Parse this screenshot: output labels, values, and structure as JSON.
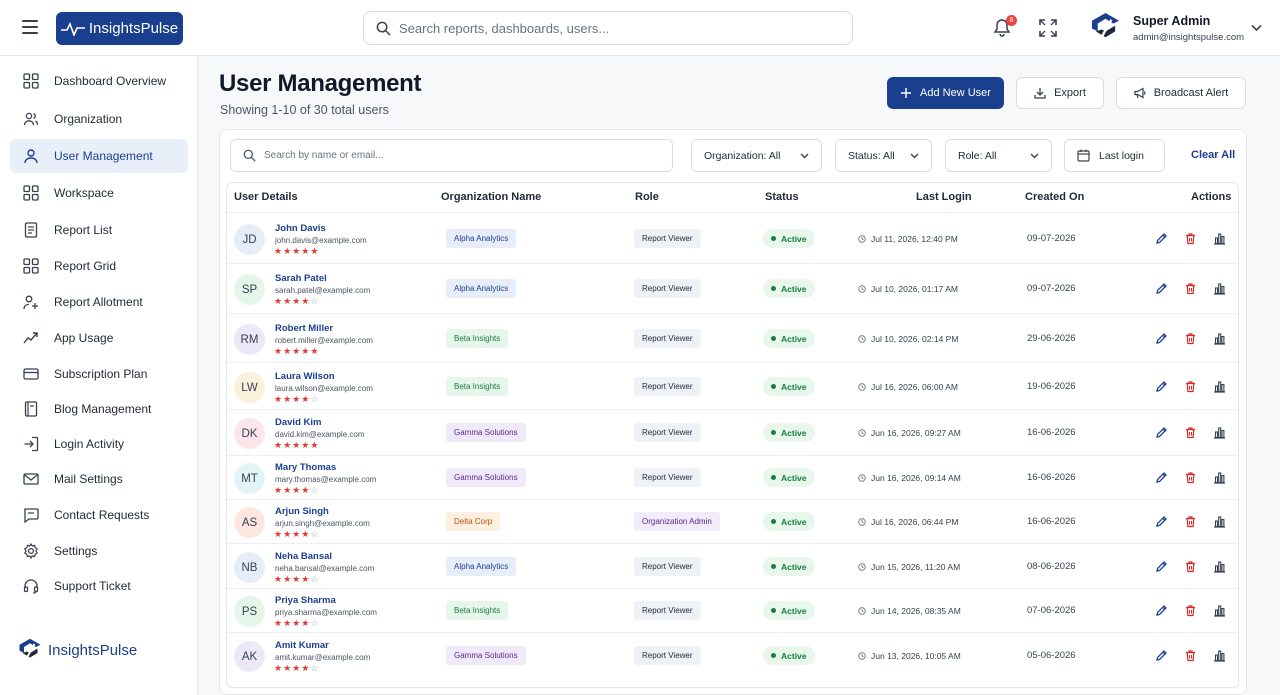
{
  "header": {
    "brand": "InsightsPulse",
    "search_placeholder": "Search reports, dashboards, users...",
    "notification_count": "8",
    "admin_name": "Super Admin",
    "admin_email": "admin@insightspulse.com"
  },
  "sidebar": {
    "items": [
      {
        "label": "Dashboard Overview",
        "icon": "grid-icon"
      },
      {
        "label": "Organization",
        "icon": "users-icon"
      },
      {
        "label": "User Management",
        "icon": "user-icon",
        "active": true
      },
      {
        "label": "Workspace",
        "icon": "grid-icon"
      },
      {
        "label": "Report List",
        "icon": "document-icon"
      },
      {
        "label": "Report Grid",
        "icon": "grid-icon"
      },
      {
        "label": "Report Allotment",
        "icon": "user-assign-icon"
      },
      {
        "label": "App Usage",
        "icon": "trend-icon"
      },
      {
        "label": "Subscription Plan",
        "icon": "card-icon"
      },
      {
        "label": "Blog Management",
        "icon": "book-icon"
      },
      {
        "label": "Login Activity",
        "icon": "login-icon"
      },
      {
        "label": "Mail Settings",
        "icon": "mail-icon"
      },
      {
        "label": "Contact Requests",
        "icon": "message-icon"
      },
      {
        "label": "Settings",
        "icon": "gear-icon"
      },
      {
        "label": "Support Ticket",
        "icon": "headset-icon"
      }
    ],
    "footer_brand": "InsightsPulse"
  },
  "page": {
    "title": "User Management",
    "subtitle": "Showing 1-10 of 30 total users",
    "add_user": "Add New User",
    "export": "Export",
    "broadcast": "Broadcast Alert"
  },
  "filters": {
    "search_placeholder": "Search by name or email...",
    "organization": "Organization: All",
    "status": "Status: All",
    "role": "Role: All",
    "last_login": "Last login",
    "clear": "Clear All"
  },
  "table": {
    "columns": [
      "User Details",
      "Organization Name",
      "Role",
      "Status",
      "Last Login",
      "Created On",
      "Actions"
    ],
    "rows": [
      {
        "initials": "JD",
        "name": "John Davis",
        "email": "john.davis@example.com",
        "rating": 5,
        "org": "Alpha Analytics",
        "role": "Report Viewer",
        "status": "Active",
        "last_login": "Jul 11, 2026, 12:40 PM",
        "created": "09-07-2026"
      },
      {
        "initials": "SP",
        "name": "Sarah Patel",
        "email": "sarah.patel@example.com",
        "rating": 4,
        "org": "Alpha Analytics",
        "role": "Report Viewer",
        "status": "Active",
        "last_login": "Jul 10, 2026, 01:17 AM",
        "created": "09-07-2026"
      },
      {
        "initials": "RM",
        "name": "Robert Miller",
        "email": "robert.miller@example.com",
        "rating": 5,
        "org": "Beta Insights",
        "role": "Report Viewer",
        "status": "Active",
        "last_login": "Jul 10, 2026, 02:14 PM",
        "created": "29-06-2026"
      },
      {
        "initials": "LW",
        "name": "Laura Wilson",
        "email": "laura.wilson@example.com",
        "rating": 4,
        "org": "Beta Insights",
        "role": "Report Viewer",
        "status": "Active",
        "last_login": "Jul 16, 2026, 06:00 AM",
        "created": "19-06-2026"
      },
      {
        "initials": "DK",
        "name": "David Kim",
        "email": "david.kim@example.com",
        "rating": 5,
        "org": "Gamma Solutions",
        "role": "Report Viewer",
        "status": "Active",
        "last_login": "Jun 16, 2026, 09:27 AM",
        "created": "16-06-2026"
      },
      {
        "initials": "MT",
        "name": "Mary Thomas",
        "email": "mary.thomas@example.com",
        "rating": 4,
        "org": "Gamma Solutions",
        "role": "Report Viewer",
        "status": "Active",
        "last_login": "Jun 16, 2026, 09:14 AM",
        "created": "16-06-2026"
      },
      {
        "initials": "AS",
        "name": "Arjun Singh",
        "email": "arjun.singh@example.com",
        "rating": 4,
        "org": "Delta Corp",
        "role": "Organization Admin",
        "status": "Active",
        "last_login": "Jul 16, 2026, 06:44 PM",
        "created": "16-06-2026"
      },
      {
        "initials": "NB",
        "name": "Neha Bansal",
        "email": "neha.bansal@example.com",
        "rating": 4,
        "org": "Alpha Analytics",
        "role": "Report Viewer",
        "status": "Active",
        "last_login": "Jun 15, 2026, 11:20 AM",
        "created": "08-06-2026"
      },
      {
        "initials": "PS",
        "name": "Priya Sharma",
        "email": "priya.sharma@example.com",
        "rating": 4,
        "org": "Beta Insights",
        "role": "Report Viewer",
        "status": "Active",
        "last_login": "Jun 14, 2026, 08:35 AM",
        "created": "07-06-2026"
      },
      {
        "initials": "AK",
        "name": "Amit Kumar",
        "email": "amit.kumar@example.com",
        "rating": 4,
        "org": "Gamma Solutions",
        "role": "Report Viewer",
        "status": "Active",
        "last_login": "Jun 13, 2026, 10:05 AM",
        "created": "05-06-2026"
      }
    ]
  },
  "colors": {
    "primary": "#1b3f8f",
    "active_green": "#15803d",
    "star_red": "#e53935",
    "delete_red": "#dc2626",
    "org_tags": {
      "Alpha Analytics": "#e8eef9",
      "Beta Insights": "#e7f6ea",
      "Gamma Solutions": "#efe9fa",
      "Delta Corp": "#fdf0e0"
    },
    "avatar_colors": {
      "JD": "#e6edf8",
      "SP": "#e5f5e9",
      "RM": "#ede8f8",
      "LW": "#fbf1db",
      "DK": "#fbe6ec",
      "MT": "#e1f4f6",
      "AS": "#fce8df",
      "NB": "#e6edf8",
      "PS": "#e5f5e9",
      "AK": "#ede8f8"
    }
  }
}
